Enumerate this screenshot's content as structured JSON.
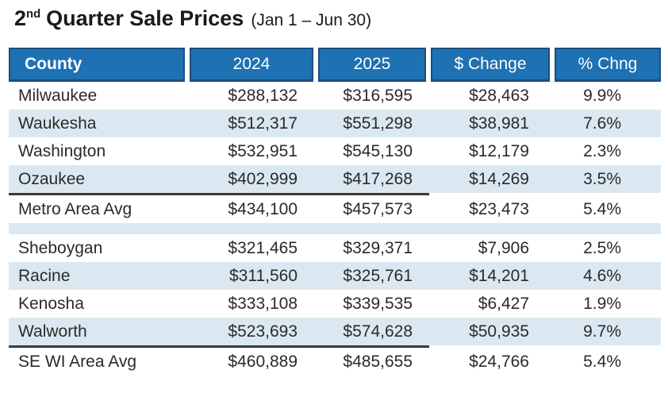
{
  "title": {
    "number": "2",
    "ordinal_suffix": "nd",
    "text": "Quarter Sale Prices",
    "date_range": "(Jan 1 – Jun 30)"
  },
  "colors": {
    "header_blue": "#1e71b2",
    "header_border": "#1d4f7e",
    "row_stripe": "#dbe8f1",
    "divider": "#3a3a3a",
    "header_text": "#ffffff",
    "body_text": "#2a2a2a"
  },
  "chart_data": {
    "type": "table",
    "title": "2nd Quarter Sale Prices (Jan 1 – Jun 30)",
    "columns": [
      "County",
      "2024",
      "2025",
      "$ Change",
      "% Chng"
    ],
    "rows": [
      [
        "Milwaukee",
        "$288,132",
        "$316,595",
        "$28,463",
        "9.9%"
      ],
      [
        "Waukesha",
        "$512,317",
        "$551,298",
        "$38,981",
        "7.6%"
      ],
      [
        "Washington",
        "$532,951",
        "$545,130",
        "$12,179",
        "2.3%"
      ],
      [
        "Ozaukee",
        "$402,999",
        "$417,268",
        "$14,269",
        "3.5%"
      ],
      [
        "Metro Area Avg",
        "$434,100",
        "$457,573",
        "$23,473",
        "5.4%"
      ],
      [
        "Sheboygan",
        "$321,465",
        "$329,371",
        "$7,906",
        "2.5%"
      ],
      [
        "Racine",
        "$311,560",
        "$325,761",
        "$14,201",
        "4.6%"
      ],
      [
        "Kenosha",
        "$333,108",
        "$339,535",
        "$6,427",
        "1.9%"
      ],
      [
        "Walworth",
        "$523,693",
        "$574,628",
        "$50,935",
        "9.7%"
      ],
      [
        "SE WI Area Avg",
        "$460,889",
        "$485,655",
        "$24,766",
        "5.4%"
      ]
    ],
    "groups": [
      {
        "label": "Metro Area",
        "member_rows": [
          0,
          1,
          2,
          3
        ],
        "summary_row": 4
      },
      {
        "label": "SE WI Area",
        "member_rows": [
          5,
          6,
          7,
          8
        ],
        "summary_row": 9
      }
    ],
    "layout_hints": {
      "striped_rows": [
        1,
        3,
        6,
        8
      ],
      "divider_before_rows": [
        4,
        9
      ],
      "spacer_after_row": 4
    }
  }
}
